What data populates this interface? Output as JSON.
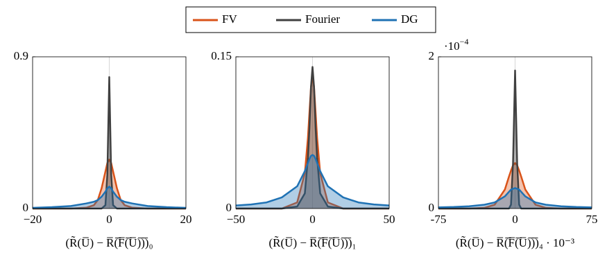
{
  "chart_data": [
    {
      "type": "line",
      "xlabel": "(R̃(U̅) − R̅(̅F̅(̅U̅)̅)̅)₀",
      "x": [
        -20,
        -15,
        -10,
        -6,
        -4,
        -3,
        -2,
        -1,
        -0.5,
        0,
        0.5,
        1,
        2,
        3,
        4,
        6,
        10,
        15,
        20
      ],
      "xlim": [
        -20,
        20
      ],
      "xticks": [
        {
          "value": -20,
          "label": "−20"
        },
        0,
        20
      ],
      "ylim": [
        0,
        0.9
      ],
      "yticks": [
        0,
        0.9
      ],
      "grid": true,
      "series": [
        {
          "name": "FV",
          "color": "#d95319",
          "values": [
            0,
            0,
            0,
            0.005,
            0.02,
            0.05,
            0.12,
            0.22,
            0.27,
            0.29,
            0.27,
            0.22,
            0.12,
            0.05,
            0.02,
            0.005,
            0,
            0,
            0
          ]
        },
        {
          "name": "Fourier",
          "color": "#404040",
          "values": [
            0,
            0,
            0,
            0,
            0,
            0,
            0,
            0.02,
            0.2,
            0.78,
            0.2,
            0.02,
            0,
            0,
            0,
            0,
            0,
            0,
            0
          ]
        },
        {
          "name": "DG",
          "color": "#1f72b4",
          "values": [
            0.004,
            0.008,
            0.015,
            0.03,
            0.04,
            0.05,
            0.07,
            0.1,
            0.12,
            0.13,
            0.12,
            0.1,
            0.07,
            0.05,
            0.04,
            0.03,
            0.015,
            0.008,
            0.004
          ]
        }
      ]
    },
    {
      "type": "line",
      "xlabel": "(R̃(U̅) − R̅(̅F̅(̅U̅)̅)̅)₁",
      "x": [
        -50,
        -40,
        -30,
        -20,
        -10,
        -5,
        -3,
        -2,
        -1,
        0,
        1,
        2,
        3,
        5,
        10,
        20,
        30,
        40,
        50
      ],
      "xlim": [
        -50,
        50
      ],
      "xticks": [
        {
          "value": -50,
          "label": "−50"
        },
        0,
        50
      ],
      "ylim": [
        0,
        0.15
      ],
      "yticks": [
        0,
        0.15
      ],
      "grid": true,
      "series": [
        {
          "color": "#d95319",
          "values": [
            0,
            0,
            0,
            0,
            0.006,
            0.035,
            0.07,
            0.095,
            0.12,
            0.132,
            0.12,
            0.095,
            0.07,
            0.035,
            0.006,
            0,
            0,
            0,
            0
          ]
        },
        {
          "color": "#404040",
          "values": [
            0,
            0,
            0,
            0,
            0.002,
            0.015,
            0.05,
            0.08,
            0.12,
            0.14,
            0.12,
            0.08,
            0.05,
            0.015,
            0.002,
            0,
            0,
            0,
            0
          ]
        },
        {
          "color": "#1f72b4",
          "values": [
            0.003,
            0.004,
            0.006,
            0.011,
            0.022,
            0.037,
            0.045,
            0.049,
            0.052,
            0.053,
            0.052,
            0.049,
            0.045,
            0.037,
            0.022,
            0.011,
            0.006,
            0.004,
            0.003
          ]
        }
      ]
    },
    {
      "type": "line",
      "xlabel": "(R̃(U̅) − R̅(̅F̅(̅U̅)̅)̅)₄ · 10⁻³",
      "y_multiplier_base": "·10",
      "y_multiplier_exponent": "−4",
      "x": [
        -75,
        -60,
        -45,
        -30,
        -20,
        -10,
        -6,
        -4,
        -2,
        0,
        2,
        4,
        6,
        10,
        20,
        30,
        45,
        60,
        75
      ],
      "xlim": [
        -75,
        75
      ],
      "xticks": [
        -75,
        0,
        75
      ],
      "ylim": [
        0,
        2
      ],
      "yticks": [
        0,
        2
      ],
      "grid": true,
      "series": [
        {
          "color": "#d95319",
          "values": [
            0,
            0,
            0,
            0.01,
            0.05,
            0.25,
            0.42,
            0.5,
            0.57,
            0.6,
            0.57,
            0.5,
            0.42,
            0.25,
            0.05,
            0.01,
            0,
            0,
            0
          ]
        },
        {
          "color": "#404040",
          "values": [
            0,
            0,
            0,
            0,
            0,
            0,
            0,
            0.05,
            0.6,
            1.82,
            0.6,
            0.05,
            0,
            0,
            0,
            0,
            0,
            0,
            0
          ]
        },
        {
          "color": "#1f72b4",
          "values": [
            0.015,
            0.02,
            0.03,
            0.05,
            0.08,
            0.16,
            0.22,
            0.25,
            0.26,
            0.27,
            0.26,
            0.25,
            0.22,
            0.16,
            0.08,
            0.05,
            0.03,
            0.02,
            0.015
          ]
        }
      ]
    }
  ]
}
